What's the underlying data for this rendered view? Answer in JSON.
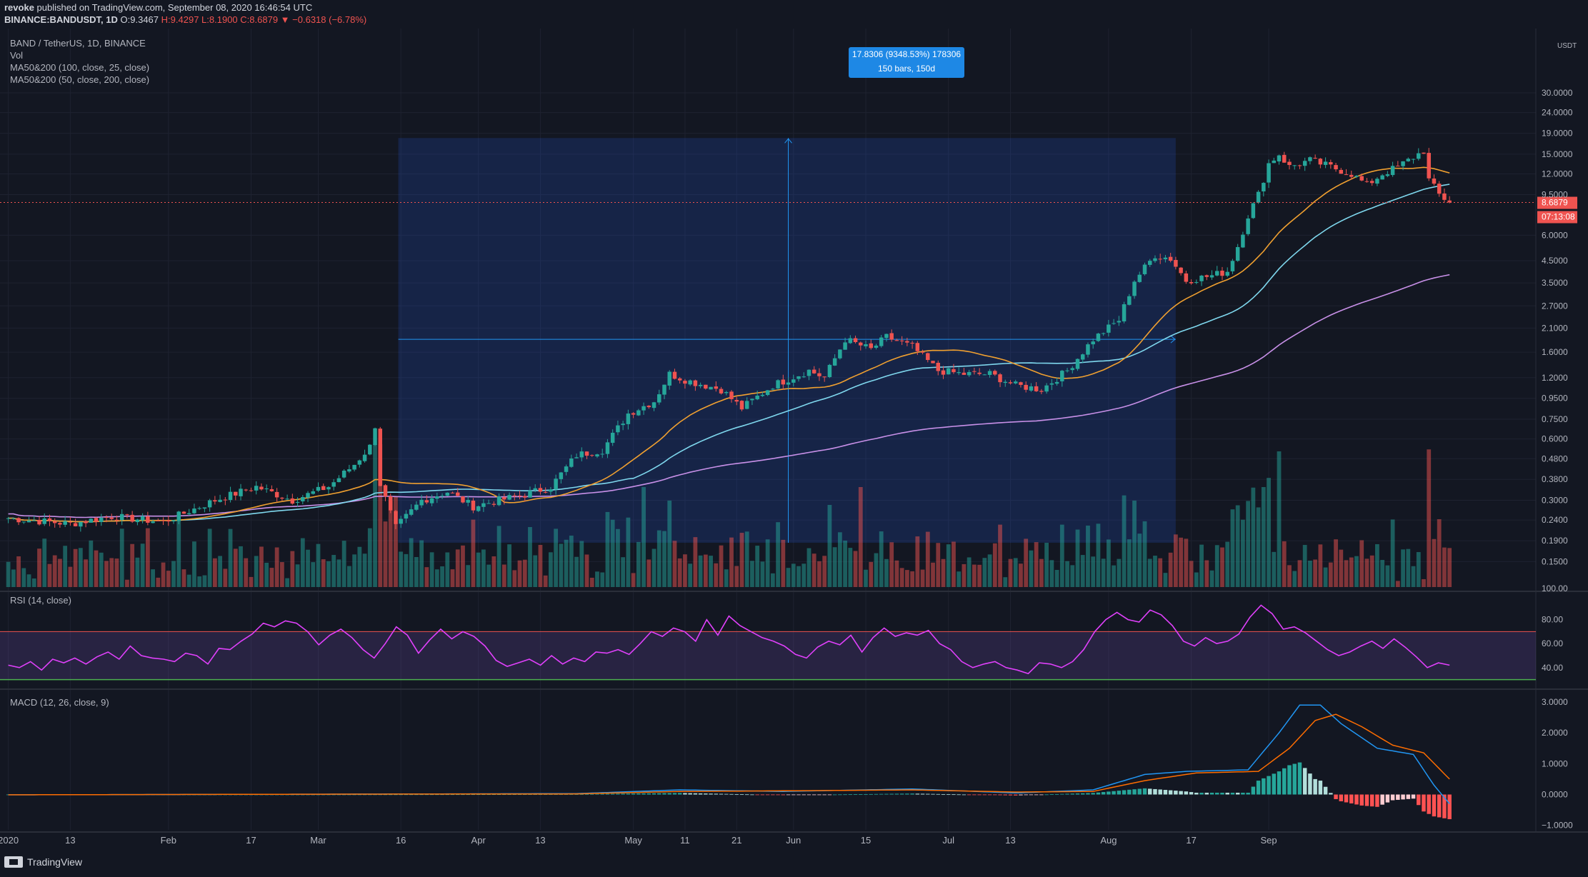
{
  "header": {
    "line1_user": "revoke",
    "line1_rest": "published on TradingView.com, September 08, 2020 16:46:54 UTC",
    "symbol": "BINANCE:BANDUSDT, 1D",
    "open": "O:9.3467",
    "high": "H:9.4297",
    "low": "L:8.1900",
    "close": "C:8.6879",
    "change": "▼ −0.6318 (−6.78%)"
  },
  "legend": {
    "title": "BAND / TetherUS, 1D, BINANCE",
    "vol": "Vol",
    "ma1": "MA50&200 (100, close, 25, close)",
    "ma2": "MA50&200 (50, close, 200, close)"
  },
  "measure_tooltip": {
    "line1": "17.8306 (9348.53%) 178306",
    "line2": "150 bars, 150d"
  },
  "price_axis": {
    "unit": "USDT",
    "current_price": "8.6879",
    "countdown": "07:13:08"
  },
  "footer": {
    "brand": "TradingView"
  },
  "colors": {
    "up": "#26a69a",
    "down": "#ef5350",
    "ma25": "#f0a030",
    "ma50": "#7fd8ee",
    "ma200": "#c890e8",
    "rsi": "#e040fb",
    "macd": "#2196f3",
    "signal": "#ff6d00"
  },
  "chart_data": [
    {
      "type": "candlestick",
      "title": "BAND / TetherUS, 1D, BINANCE",
      "scale": "log",
      "ylim": [
        0.12,
        32
      ],
      "y_ticks": [
        "0.1500",
        "0.1900",
        "0.2400",
        "0.3000",
        "0.3800",
        "0.4800",
        "0.6000",
        "0.7500",
        "0.9500",
        "1.2000",
        "1.6000",
        "2.1000",
        "2.7000",
        "3.5000",
        "4.5000",
        "6.0000",
        "9.5000",
        "12.0000",
        "15.0000",
        "19.0000",
        "24.0000",
        "30.0000"
      ],
      "x_labels": [
        "2020",
        "13",
        "Feb",
        "17",
        "Mar",
        "16",
        "Apr",
        "13",
        "May",
        "11",
        "21",
        "Jun",
        "15",
        "Jul",
        "13",
        "Aug",
        "17",
        "Sep"
      ],
      "anchors": [
        {
          "d": 0,
          "c": 0.245
        },
        {
          "d": 12,
          "c": 0.23
        },
        {
          "d": 20,
          "c": 0.25
        },
        {
          "d": 30,
          "c": 0.235
        },
        {
          "d": 40,
          "c": 0.3
        },
        {
          "d": 48,
          "c": 0.35
        },
        {
          "d": 55,
          "c": 0.3
        },
        {
          "d": 62,
          "c": 0.35
        },
        {
          "d": 67,
          "c": 0.45
        },
        {
          "d": 70,
          "c": 0.55
        },
        {
          "d": 71,
          "c": 0.7
        },
        {
          "d": 72,
          "c": 0.36
        },
        {
          "d": 75,
          "c": 0.22
        },
        {
          "d": 80,
          "c": 0.3
        },
        {
          "d": 85,
          "c": 0.33
        },
        {
          "d": 90,
          "c": 0.28
        },
        {
          "d": 95,
          "c": 0.3
        },
        {
          "d": 100,
          "c": 0.32
        },
        {
          "d": 105,
          "c": 0.35
        },
        {
          "d": 110,
          "c": 0.5
        },
        {
          "d": 115,
          "c": 0.53
        },
        {
          "d": 120,
          "c": 0.8
        },
        {
          "d": 125,
          "c": 0.92
        },
        {
          "d": 128,
          "c": 1.25
        },
        {
          "d": 132,
          "c": 1.15
        },
        {
          "d": 138,
          "c": 1.05
        },
        {
          "d": 142,
          "c": 0.85
        },
        {
          "d": 148,
          "c": 1.1
        },
        {
          "d": 155,
          "c": 1.3
        },
        {
          "d": 158,
          "c": 1.2
        },
        {
          "d": 162,
          "c": 1.85
        },
        {
          "d": 167,
          "c": 1.65
        },
        {
          "d": 170,
          "c": 1.9
        },
        {
          "d": 175,
          "c": 1.7
        },
        {
          "d": 180,
          "c": 1.3
        },
        {
          "d": 185,
          "c": 1.25
        },
        {
          "d": 190,
          "c": 1.25
        },
        {
          "d": 195,
          "c": 1.1
        },
        {
          "d": 200,
          "c": 1.05
        },
        {
          "d": 205,
          "c": 1.3
        },
        {
          "d": 210,
          "c": 1.85
        },
        {
          "d": 215,
          "c": 2.3
        },
        {
          "d": 218,
          "c": 3.6
        },
        {
          "d": 222,
          "c": 4.8
        },
        {
          "d": 225,
          "c": 4.6
        },
        {
          "d": 228,
          "c": 3.6
        },
        {
          "d": 233,
          "c": 3.8
        },
        {
          "d": 236,
          "c": 4.0
        },
        {
          "d": 238,
          "c": 5.3
        },
        {
          "d": 240,
          "c": 7.5
        },
        {
          "d": 242,
          "c": 9.5
        },
        {
          "d": 244,
          "c": 13.5
        },
        {
          "d": 246,
          "c": 15.0
        },
        {
          "d": 248,
          "c": 13.0
        },
        {
          "d": 252,
          "c": 14.0
        },
        {
          "d": 256,
          "c": 13.0
        },
        {
          "d": 260,
          "c": 12.0
        },
        {
          "d": 263,
          "c": 10.6
        },
        {
          "d": 266,
          "c": 12.0
        },
        {
          "d": 269,
          "c": 13.0
        },
        {
          "d": 272,
          "c": 14.5
        },
        {
          "d": 274,
          "c": 15.6
        },
        {
          "d": 275,
          "c": 11.2
        },
        {
          "d": 277,
          "c": 9.5
        },
        {
          "d": 279,
          "c": 8.6879
        }
      ],
      "moving_averages": [
        {
          "name": "MA 25",
          "end": 12.0
        },
        {
          "name": "MA 50",
          "end": 9.5
        },
        {
          "name": "MA 200",
          "end": 3.1
        }
      ],
      "measure": {
        "from_day": 76,
        "to_day": 226,
        "low": 0.19,
        "high": 18.0,
        "change": "17.8306 (9348.53%)",
        "bars": "150 bars, 150d"
      }
    },
    {
      "type": "line",
      "title": "RSI (14, close)",
      "ylim": [
        25,
        100
      ],
      "y_ticks": [
        "100.00",
        "80.00",
        "60.00",
        "40.00"
      ],
      "bands": {
        "upper": 70,
        "lower": 30
      },
      "values": [
        42,
        40,
        45,
        38,
        47,
        44,
        48,
        43,
        49,
        53,
        47,
        58,
        50,
        48,
        47,
        45,
        52,
        50,
        43,
        56,
        55,
        62,
        68,
        77,
        74,
        79,
        77,
        70,
        59,
        67,
        72,
        65,
        55,
        48,
        60,
        74,
        67,
        52,
        63,
        72,
        64,
        70,
        66,
        58,
        46,
        41,
        44,
        47,
        42,
        50,
        43,
        48,
        45,
        53,
        52,
        55,
        51,
        60,
        70,
        66,
        73,
        70,
        62,
        80,
        67,
        83,
        75,
        70,
        65,
        62,
        58,
        51,
        48,
        57,
        62,
        59,
        67,
        53,
        65,
        73,
        66,
        69,
        67,
        71,
        60,
        55,
        45,
        40,
        43,
        45,
        40,
        38,
        35,
        44,
        43,
        40,
        45,
        55,
        70,
        80,
        86,
        80,
        78,
        88,
        84,
        75,
        62,
        58,
        65,
        60,
        62,
        68,
        82,
        92,
        85,
        72,
        74,
        69,
        62,
        55,
        50,
        53,
        58,
        62,
        56,
        64,
        57,
        49,
        40,
        44,
        42
      ]
    },
    {
      "type": "line",
      "title": "MACD (12, 26, close, 9)",
      "ylim": [
        -1.1,
        3.3
      ],
      "y_ticks": [
        "3.0000",
        "2.0000",
        "1.0000",
        "0.0000",
        "−1.0000"
      ],
      "macd": [
        {
          "d": 0,
          "v": -0.01
        },
        {
          "d": 60,
          "v": 0.01
        },
        {
          "d": 110,
          "v": 0.03
        },
        {
          "d": 130,
          "v": 0.15
        },
        {
          "d": 150,
          "v": 0.1
        },
        {
          "d": 175,
          "v": 0.18
        },
        {
          "d": 195,
          "v": 0.05
        },
        {
          "d": 210,
          "v": 0.15
        },
        {
          "d": 220,
          "v": 0.65
        },
        {
          "d": 228,
          "v": 0.75
        },
        {
          "d": 240,
          "v": 0.8
        },
        {
          "d": 246,
          "v": 2.0
        },
        {
          "d": 250,
          "v": 2.9
        },
        {
          "d": 254,
          "v": 2.9
        },
        {
          "d": 258,
          "v": 2.3
        },
        {
          "d": 265,
          "v": 1.5
        },
        {
          "d": 272,
          "v": 1.3
        },
        {
          "d": 276,
          "v": 0.3
        },
        {
          "d": 279,
          "v": -0.3
        }
      ],
      "signal": [
        {
          "d": 0,
          "v": -0.01
        },
        {
          "d": 60,
          "v": 0.01
        },
        {
          "d": 110,
          "v": 0.02
        },
        {
          "d": 130,
          "v": 0.1
        },
        {
          "d": 150,
          "v": 0.12
        },
        {
          "d": 175,
          "v": 0.15
        },
        {
          "d": 195,
          "v": 0.08
        },
        {
          "d": 210,
          "v": 0.1
        },
        {
          "d": 220,
          "v": 0.45
        },
        {
          "d": 230,
          "v": 0.7
        },
        {
          "d": 242,
          "v": 0.75
        },
        {
          "d": 248,
          "v": 1.5
        },
        {
          "d": 253,
          "v": 2.4
        },
        {
          "d": 257,
          "v": 2.6
        },
        {
          "d": 262,
          "v": 2.2
        },
        {
          "d": 268,
          "v": 1.6
        },
        {
          "d": 274,
          "v": 1.35
        },
        {
          "d": 279,
          "v": 0.5
        }
      ]
    }
  ]
}
